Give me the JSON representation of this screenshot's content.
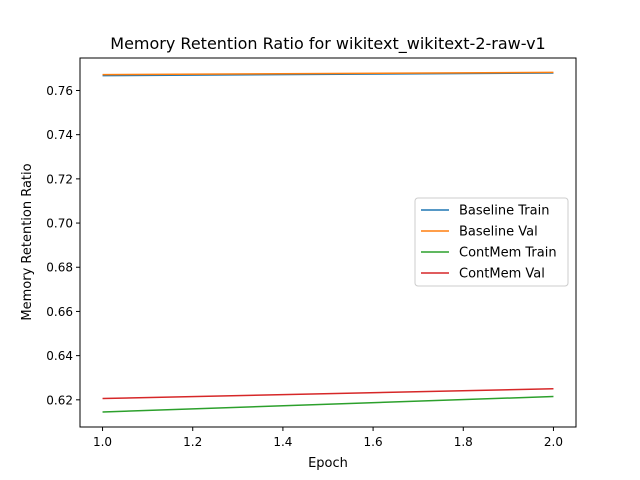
{
  "chart_data": {
    "type": "line",
    "title": "Memory Retention Ratio for wikitext_wikitext-2-raw-v1",
    "xlabel": "Epoch",
    "ylabel": "Memory Retention Ratio",
    "x": [
      1.0,
      2.0
    ],
    "xlim": [
      0.95,
      2.05
    ],
    "ylim": [
      0.6077,
      0.7747
    ],
    "xticks": [
      1.0,
      1.2,
      1.4,
      1.6,
      1.8,
      2.0
    ],
    "xtick_labels": [
      "1.0",
      "1.2",
      "1.4",
      "1.6",
      "1.8",
      "2.0"
    ],
    "yticks": [
      0.62,
      0.64,
      0.66,
      0.68,
      0.7,
      0.72,
      0.74,
      0.76
    ],
    "ytick_labels": [
      "0.62",
      "0.64",
      "0.66",
      "0.68",
      "0.70",
      "0.72",
      "0.74",
      "0.76"
    ],
    "grid": false,
    "legend_position": "center-right",
    "series": [
      {
        "name": "Baseline Train",
        "color": "#1f77b4",
        "values": [
          0.7667,
          0.7679
        ]
      },
      {
        "name": "Baseline Val",
        "color": "#ff7f0e",
        "values": [
          0.7672,
          0.7682
        ]
      },
      {
        "name": "ContMem Train",
        "color": "#2ca02c",
        "values": [
          0.6145,
          0.6215
        ]
      },
      {
        "name": "ContMem Val",
        "color": "#d62728",
        "values": [
          0.6206,
          0.625
        ]
      }
    ]
  }
}
